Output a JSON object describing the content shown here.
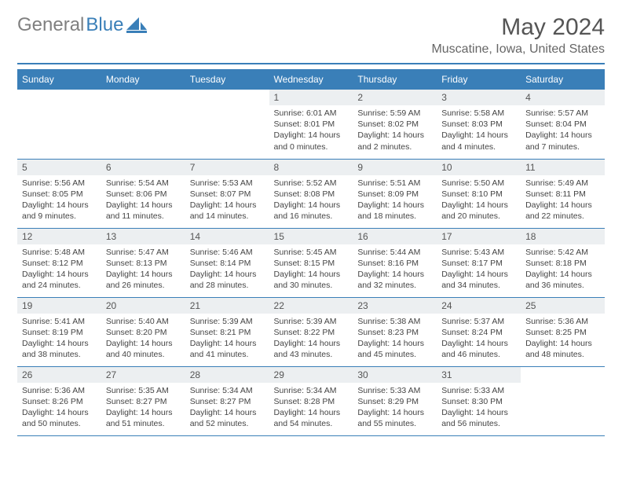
{
  "brand": {
    "text_gray": "General",
    "text_blue": "Blue",
    "icon_color": "#3a7fb8"
  },
  "header": {
    "title": "May 2024",
    "location": "Muscatine, Iowa, United States",
    "underline_color": "#3a7fb8"
  },
  "calendar": {
    "header_bg": "#3a7fb8",
    "daynum_bg": "#eceff1",
    "border_color": "#3a7fb8",
    "text_color": "#444444",
    "font_size_body": 10.5,
    "font_size_header": 12,
    "day_names": [
      "Sunday",
      "Monday",
      "Tuesday",
      "Wednesday",
      "Thursday",
      "Friday",
      "Saturday"
    ],
    "weeks": [
      [
        null,
        null,
        null,
        {
          "n": "1",
          "sr": "Sunrise: 6:01 AM",
          "ss": "Sunset: 8:01 PM",
          "dl": "Daylight: 14 hours and 0 minutes."
        },
        {
          "n": "2",
          "sr": "Sunrise: 5:59 AM",
          "ss": "Sunset: 8:02 PM",
          "dl": "Daylight: 14 hours and 2 minutes."
        },
        {
          "n": "3",
          "sr": "Sunrise: 5:58 AM",
          "ss": "Sunset: 8:03 PM",
          "dl": "Daylight: 14 hours and 4 minutes."
        },
        {
          "n": "4",
          "sr": "Sunrise: 5:57 AM",
          "ss": "Sunset: 8:04 PM",
          "dl": "Daylight: 14 hours and 7 minutes."
        }
      ],
      [
        {
          "n": "5",
          "sr": "Sunrise: 5:56 AM",
          "ss": "Sunset: 8:05 PM",
          "dl": "Daylight: 14 hours and 9 minutes."
        },
        {
          "n": "6",
          "sr": "Sunrise: 5:54 AM",
          "ss": "Sunset: 8:06 PM",
          "dl": "Daylight: 14 hours and 11 minutes."
        },
        {
          "n": "7",
          "sr": "Sunrise: 5:53 AM",
          "ss": "Sunset: 8:07 PM",
          "dl": "Daylight: 14 hours and 14 minutes."
        },
        {
          "n": "8",
          "sr": "Sunrise: 5:52 AM",
          "ss": "Sunset: 8:08 PM",
          "dl": "Daylight: 14 hours and 16 minutes."
        },
        {
          "n": "9",
          "sr": "Sunrise: 5:51 AM",
          "ss": "Sunset: 8:09 PM",
          "dl": "Daylight: 14 hours and 18 minutes."
        },
        {
          "n": "10",
          "sr": "Sunrise: 5:50 AM",
          "ss": "Sunset: 8:10 PM",
          "dl": "Daylight: 14 hours and 20 minutes."
        },
        {
          "n": "11",
          "sr": "Sunrise: 5:49 AM",
          "ss": "Sunset: 8:11 PM",
          "dl": "Daylight: 14 hours and 22 minutes."
        }
      ],
      [
        {
          "n": "12",
          "sr": "Sunrise: 5:48 AM",
          "ss": "Sunset: 8:12 PM",
          "dl": "Daylight: 14 hours and 24 minutes."
        },
        {
          "n": "13",
          "sr": "Sunrise: 5:47 AM",
          "ss": "Sunset: 8:13 PM",
          "dl": "Daylight: 14 hours and 26 minutes."
        },
        {
          "n": "14",
          "sr": "Sunrise: 5:46 AM",
          "ss": "Sunset: 8:14 PM",
          "dl": "Daylight: 14 hours and 28 minutes."
        },
        {
          "n": "15",
          "sr": "Sunrise: 5:45 AM",
          "ss": "Sunset: 8:15 PM",
          "dl": "Daylight: 14 hours and 30 minutes."
        },
        {
          "n": "16",
          "sr": "Sunrise: 5:44 AM",
          "ss": "Sunset: 8:16 PM",
          "dl": "Daylight: 14 hours and 32 minutes."
        },
        {
          "n": "17",
          "sr": "Sunrise: 5:43 AM",
          "ss": "Sunset: 8:17 PM",
          "dl": "Daylight: 14 hours and 34 minutes."
        },
        {
          "n": "18",
          "sr": "Sunrise: 5:42 AM",
          "ss": "Sunset: 8:18 PM",
          "dl": "Daylight: 14 hours and 36 minutes."
        }
      ],
      [
        {
          "n": "19",
          "sr": "Sunrise: 5:41 AM",
          "ss": "Sunset: 8:19 PM",
          "dl": "Daylight: 14 hours and 38 minutes."
        },
        {
          "n": "20",
          "sr": "Sunrise: 5:40 AM",
          "ss": "Sunset: 8:20 PM",
          "dl": "Daylight: 14 hours and 40 minutes."
        },
        {
          "n": "21",
          "sr": "Sunrise: 5:39 AM",
          "ss": "Sunset: 8:21 PM",
          "dl": "Daylight: 14 hours and 41 minutes."
        },
        {
          "n": "22",
          "sr": "Sunrise: 5:39 AM",
          "ss": "Sunset: 8:22 PM",
          "dl": "Daylight: 14 hours and 43 minutes."
        },
        {
          "n": "23",
          "sr": "Sunrise: 5:38 AM",
          "ss": "Sunset: 8:23 PM",
          "dl": "Daylight: 14 hours and 45 minutes."
        },
        {
          "n": "24",
          "sr": "Sunrise: 5:37 AM",
          "ss": "Sunset: 8:24 PM",
          "dl": "Daylight: 14 hours and 46 minutes."
        },
        {
          "n": "25",
          "sr": "Sunrise: 5:36 AM",
          "ss": "Sunset: 8:25 PM",
          "dl": "Daylight: 14 hours and 48 minutes."
        }
      ],
      [
        {
          "n": "26",
          "sr": "Sunrise: 5:36 AM",
          "ss": "Sunset: 8:26 PM",
          "dl": "Daylight: 14 hours and 50 minutes."
        },
        {
          "n": "27",
          "sr": "Sunrise: 5:35 AM",
          "ss": "Sunset: 8:27 PM",
          "dl": "Daylight: 14 hours and 51 minutes."
        },
        {
          "n": "28",
          "sr": "Sunrise: 5:34 AM",
          "ss": "Sunset: 8:27 PM",
          "dl": "Daylight: 14 hours and 52 minutes."
        },
        {
          "n": "29",
          "sr": "Sunrise: 5:34 AM",
          "ss": "Sunset: 8:28 PM",
          "dl": "Daylight: 14 hours and 54 minutes."
        },
        {
          "n": "30",
          "sr": "Sunrise: 5:33 AM",
          "ss": "Sunset: 8:29 PM",
          "dl": "Daylight: 14 hours and 55 minutes."
        },
        {
          "n": "31",
          "sr": "Sunrise: 5:33 AM",
          "ss": "Sunset: 8:30 PM",
          "dl": "Daylight: 14 hours and 56 minutes."
        },
        null
      ]
    ]
  }
}
